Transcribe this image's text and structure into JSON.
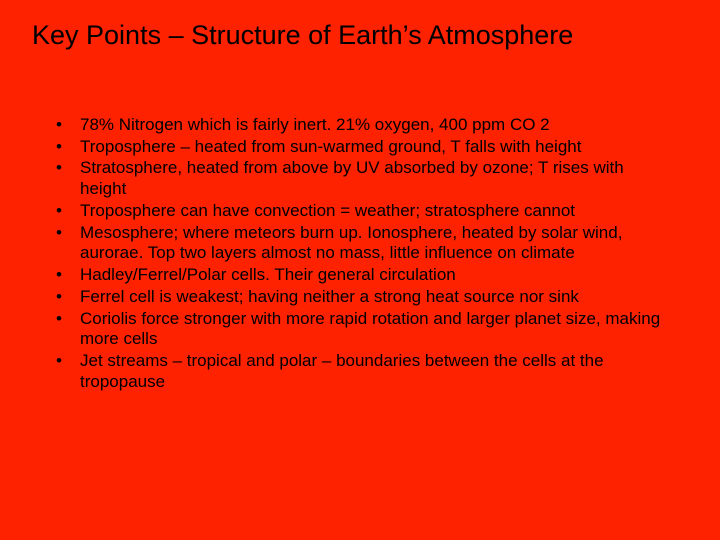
{
  "background_color": "#ff2200",
  "text_color": "#000000",
  "font_family": "Arial",
  "title": {
    "text": "Key Points – Structure of Earth’s Atmosphere",
    "fontsize": 27,
    "fontweight": "normal"
  },
  "bullets": {
    "fontsize": 17,
    "marker": "•",
    "items": [
      "78% Nitrogen which is fairly inert. 21% oxygen, 400 ppm CO 2",
      "Troposphere – heated from sun-warmed ground, T falls with height",
      "Stratosphere, heated from above by UV absorbed by ozone; T rises with height",
      "Troposphere can have convection = weather; stratosphere cannot",
      "Mesosphere; where meteors burn up. Ionosphere, heated by solar wind, aurorae. Top two layers almost no mass, little influence on climate",
      "Hadley/Ferrel/Polar cells. Their general circulation",
      "Ferrel cell is weakest; having neither a strong heat source nor sink",
      "Coriolis force stronger with more rapid rotation and larger planet size, making more cells",
      "Jet streams – tropical and polar – boundaries between the cells at the tropopause"
    ]
  }
}
